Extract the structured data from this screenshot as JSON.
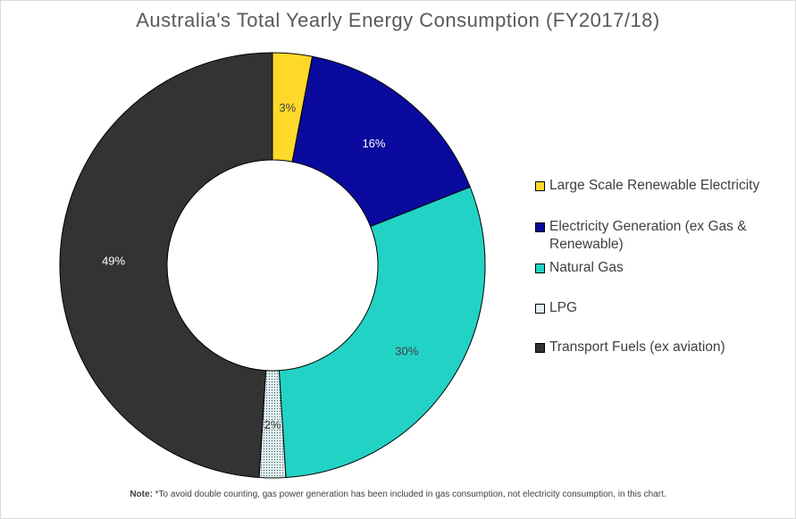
{
  "chart_data": {
    "type": "pie",
    "title": "Australia's Total Yearly Energy Consumption (FY2017/18)",
    "series": [
      {
        "name": "Large Scale Renewable Electricity",
        "value": 3,
        "label": "3%",
        "color": "#ffd92a",
        "label_color": "#404040"
      },
      {
        "name": "Electricity Generation (ex Gas & Renewable)",
        "value": 16,
        "label": "16%",
        "color": "#0a0a9e",
        "label_color": "#ffffff"
      },
      {
        "name": "Natural Gas",
        "value": 30,
        "label": "30%",
        "color": "#22d3c5",
        "label_color": "#404040"
      },
      {
        "name": "LPG",
        "value": 2,
        "label": "2%",
        "color": "#dff3f5",
        "pattern": "dotted",
        "label_color": "#404040"
      },
      {
        "name": "Transport Fuels (ex aviation)",
        "value": 49,
        "label": "49%",
        "color": "#333333",
        "label_color": "#ffffff"
      }
    ],
    "donut": true,
    "legend_position": "right"
  },
  "legend": {
    "items": [
      {
        "line1": "Large Scale Renewable Electricity",
        "line2": ""
      },
      {
        "line1": "Electricity Generation (ex Gas &",
        "line2": "Renewable)"
      },
      {
        "line1": "Natural Gas",
        "line2": ""
      },
      {
        "line1": "LPG",
        "line2": ""
      },
      {
        "line1": "Transport Fuels (ex aviation)",
        "line2": ""
      }
    ]
  },
  "note": {
    "label": "Note:",
    "text": " *To avoid double counting, gas power generation has been included in gas consumption, not electricity consumption, in this chart."
  }
}
